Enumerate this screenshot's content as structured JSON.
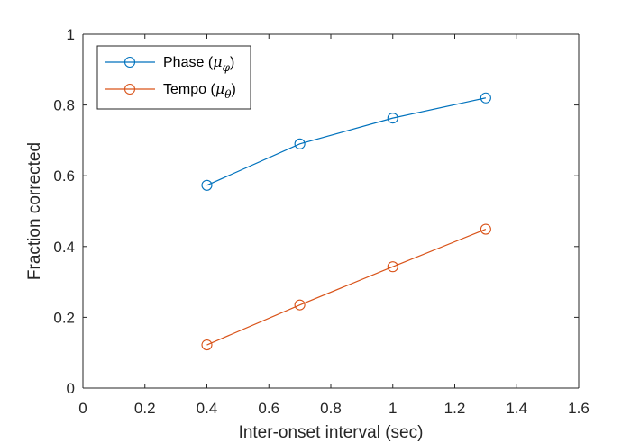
{
  "chart_data": {
    "type": "line",
    "title": "",
    "xlabel": "Inter-onset interval (sec)",
    "ylabel": "Fraction corrected",
    "xlim": [
      0,
      1.6
    ],
    "ylim": [
      0,
      1
    ],
    "xticks": [
      0,
      0.2,
      0.4,
      0.6,
      0.8,
      1,
      1.2,
      1.4,
      1.6
    ],
    "yticks": [
      0,
      0.2,
      0.4,
      0.6,
      0.8,
      1
    ],
    "xtick_labels": [
      "0",
      "0.2",
      "0.4",
      "0.6",
      "0.8",
      "1",
      "1.2",
      "1.4",
      "1.6"
    ],
    "ytick_labels": [
      "0",
      "0.2",
      "0.4",
      "0.6",
      "0.8",
      "1"
    ],
    "grid": false,
    "legend_position": "top-left",
    "x": [
      0.4,
      0.7,
      1.0,
      1.3
    ],
    "series": [
      {
        "name": "Phase",
        "symbol": "μ",
        "subscript": "φ",
        "color": "#0072BD",
        "marker": "circle",
        "values": [
          0.573,
          0.69,
          0.763,
          0.82
        ]
      },
      {
        "name": "Tempo",
        "symbol": "μ",
        "subscript": "θ",
        "color": "#D95319",
        "marker": "circle",
        "values": [
          0.122,
          0.235,
          0.343,
          0.449
        ]
      }
    ]
  }
}
